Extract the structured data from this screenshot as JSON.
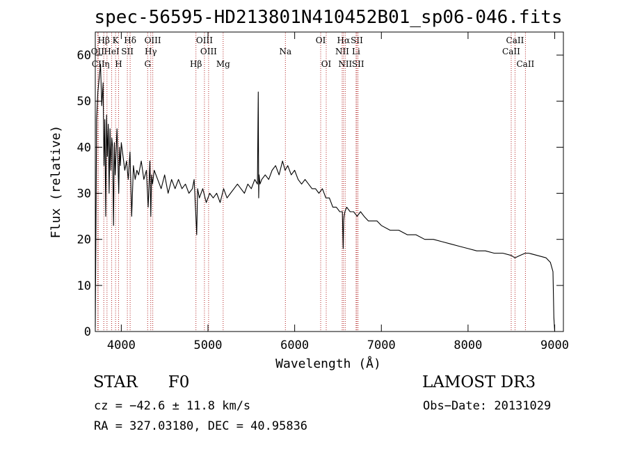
{
  "chart_data": {
    "type": "line",
    "title": "spec-56595-HD213801N410452B01_sp06-046.fits",
    "xlabel": "Wavelength (Å)",
    "ylabel": "Flux (relative)",
    "xlim": [
      3700,
      9100
    ],
    "ylim": [
      0,
      65
    ],
    "xticks": [
      4000,
      5000,
      6000,
      7000,
      8000,
      9000
    ],
    "yticks": [
      0,
      10,
      20,
      30,
      40,
      50,
      60
    ],
    "series": [
      {
        "name": "flux",
        "x": [
          3700,
          3715,
          3730,
          3745,
          3760,
          3775,
          3790,
          3800,
          3810,
          3820,
          3830,
          3840,
          3850,
          3860,
          3870,
          3880,
          3890,
          3900,
          3910,
          3920,
          3930,
          3940,
          3950,
          3960,
          3970,
          3980,
          3990,
          4000,
          4020,
          4040,
          4060,
          4080,
          4100,
          4120,
          4140,
          4160,
          4180,
          4200,
          4230,
          4260,
          4290,
          4310,
          4330,
          4340,
          4350,
          4360,
          4380,
          4420,
          4460,
          4500,
          4540,
          4580,
          4620,
          4660,
          4700,
          4740,
          4780,
          4820,
          4840,
          4860,
          4870,
          4880,
          4900,
          4940,
          4980,
          5020,
          5060,
          5100,
          5140,
          5180,
          5220,
          5260,
          5300,
          5340,
          5380,
          5420,
          5460,
          5500,
          5540,
          5570,
          5580,
          5585,
          5590,
          5600,
          5620,
          5660,
          5700,
          5740,
          5780,
          5820,
          5860,
          5890,
          5920,
          5960,
          6000,
          6040,
          6080,
          6120,
          6160,
          6200,
          6240,
          6280,
          6320,
          6360,
          6400,
          6440,
          6480,
          6520,
          6550,
          6560,
          6565,
          6570,
          6580,
          6600,
          6640,
          6680,
          6720,
          6760,
          6800,
          6850,
          6900,
          6950,
          7000,
          7100,
          7200,
          7300,
          7400,
          7500,
          7600,
          7700,
          7800,
          7900,
          8000,
          8100,
          8200,
          8300,
          8400,
          8500,
          8540,
          8600,
          8660,
          8700,
          8800,
          8900,
          8950,
          8980,
          8990,
          9000
        ],
        "y": [
          1,
          46,
          52,
          55,
          58,
          49,
          54,
          36,
          46,
          25,
          47,
          38,
          45,
          30,
          44,
          35,
          42,
          40,
          23,
          41,
          34,
          39,
          44,
          38,
          30,
          40,
          36,
          41,
          38,
          35,
          37,
          33,
          39,
          25,
          36,
          33,
          35,
          34,
          37,
          33,
          35,
          27,
          37,
          25,
          34,
          32,
          35,
          33,
          31,
          34,
          30,
          33,
          31,
          33,
          31,
          32,
          30,
          31,
          33,
          25,
          21,
          31,
          29,
          31,
          28,
          30,
          29,
          30,
          28,
          31,
          29,
          30,
          31,
          32,
          31,
          30,
          32,
          31,
          33,
          32,
          52,
          29,
          34,
          32,
          33,
          34,
          33,
          35,
          36,
          34,
          37,
          35,
          36,
          34,
          35,
          33,
          32,
          33,
          32,
          31,
          31,
          30,
          31,
          29,
          29,
          27,
          27,
          26,
          26,
          18,
          24,
          25,
          26,
          27,
          26,
          26,
          25,
          26,
          25,
          24,
          24,
          24,
          23,
          22,
          22,
          21,
          21,
          20,
          20,
          19.5,
          19,
          18.5,
          18,
          17.5,
          17.5,
          17,
          17,
          16.5,
          16,
          16.5,
          17,
          17,
          16.5,
          16,
          15,
          13,
          3,
          0
        ]
      }
    ],
    "line_markers": [
      {
        "label": "Hβ",
        "x": 3798,
        "row": 1
      },
      {
        "label": "K",
        "x": 3934,
        "row": 1
      },
      {
        "label": "Hδ",
        "x": 4102,
        "row": 1
      },
      {
        "label": "OIII",
        "x": 4363,
        "row": 1
      },
      {
        "label": "OIII",
        "x": 4959,
        "row": 1
      },
      {
        "label": "OI",
        "x": 6300,
        "row": 1
      },
      {
        "label": "Hα",
        "x": 6563,
        "row": 1
      },
      {
        "label": "SII",
        "x": 6717,
        "row": 1
      },
      {
        "label": "CaII",
        "x": 8542,
        "row": 1
      },
      {
        "label": "OII",
        "x": 3727,
        "row": 2
      },
      {
        "label": "HeI",
        "x": 3889,
        "row": 2
      },
      {
        "label": "SII",
        "x": 4070,
        "row": 2
      },
      {
        "label": "Hγ",
        "x": 4340,
        "row": 2
      },
      {
        "label": "OIII",
        "x": 5007,
        "row": 2
      },
      {
        "label": "Na",
        "x": 5893,
        "row": 2
      },
      {
        "label": "NII",
        "x": 6548,
        "row": 2
      },
      {
        "label": "Li",
        "x": 6708,
        "row": 2
      },
      {
        "label": "CaII",
        "x": 8498,
        "row": 2
      },
      {
        "label": "CII",
        "x": 3734,
        "row": 3
      },
      {
        "label": "η",
        "x": 3835,
        "row": 3
      },
      {
        "label": "H",
        "x": 3969,
        "row": 3
      },
      {
        "label": "G",
        "x": 4304,
        "row": 3
      },
      {
        "label": "Hβ",
        "x": 4861,
        "row": 3
      },
      {
        "label": "Mg",
        "x": 5175,
        "row": 3
      },
      {
        "label": "OI",
        "x": 6364,
        "row": 3
      },
      {
        "label": "NII",
        "x": 6583,
        "row": 3
      },
      {
        "label": "SII",
        "x": 6731,
        "row": 3
      },
      {
        "label": "CaII",
        "x": 8662,
        "row": 3
      }
    ]
  },
  "info": {
    "class": "STAR",
    "subclass": "F0",
    "survey": "LAMOST DR3",
    "cz": "cz = −42.6 ± 11.8 km/s",
    "obs_date": "Obs−Date: 20131029",
    "radec": "RA = 327.03180, DEC =  40.95836"
  },
  "colors": {
    "line": "#000000",
    "marker": "#b22222",
    "background": "#ffffff"
  }
}
